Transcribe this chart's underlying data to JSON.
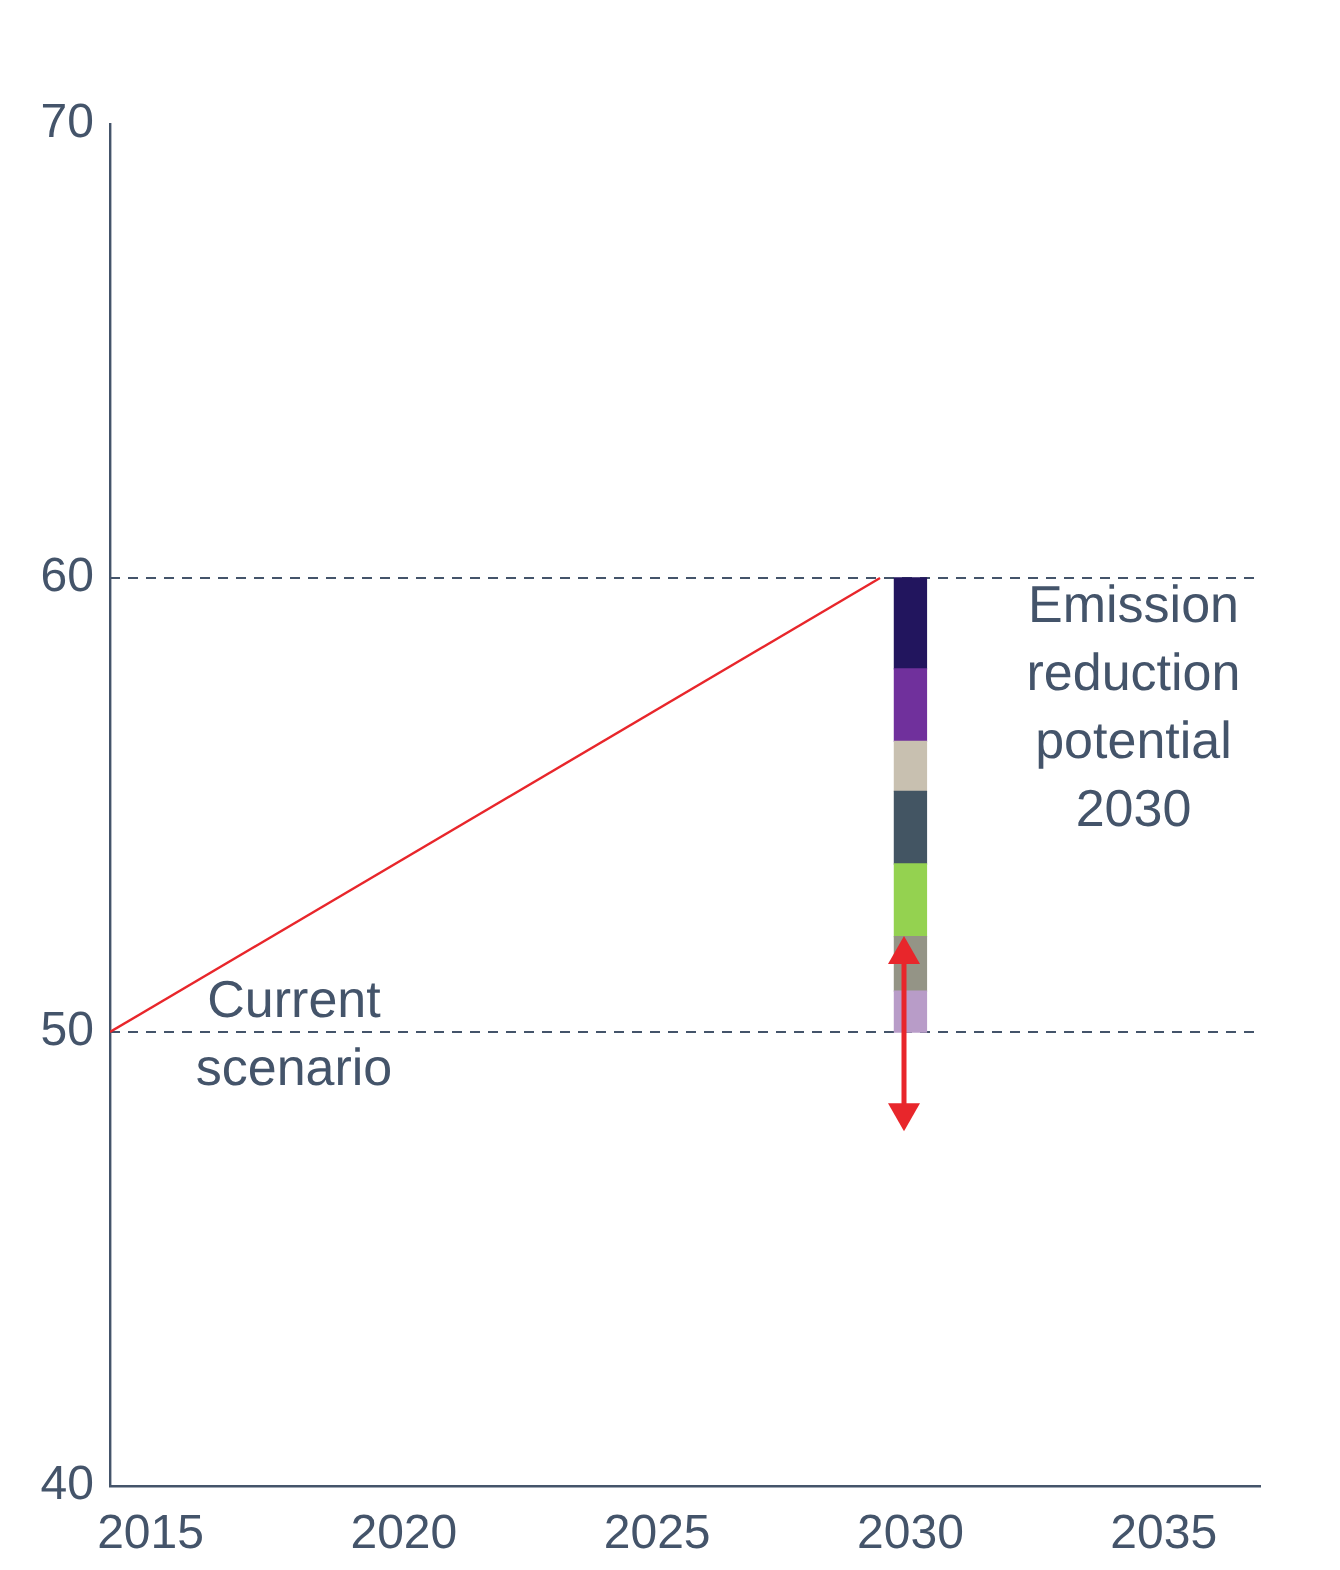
{
  "chart_data": {
    "type": "bar",
    "xlim": [
      2014.2,
      2036.9
    ],
    "xticks": [
      2015,
      2020,
      2025,
      2030,
      2035
    ],
    "ylim": [
      40,
      70
    ],
    "yticks": [
      40,
      50,
      60,
      70
    ],
    "series": [
      {
        "type": "line",
        "color": "#e8262b",
        "x": [
          2014.2,
          2029.4
        ],
        "values": [
          50,
          60
        ]
      },
      {
        "color": "#b89cc8",
        "x": [
          2030
        ],
        "values": [
          0.9
        ],
        "base": [
          50
        ]
      },
      {
        "color": "#949486",
        "x": [
          2030
        ],
        "values": [
          1.2
        ],
        "base": [
          50.9
        ]
      },
      {
        "color": "#94d250",
        "x": [
          2030
        ],
        "values": [
          1.6
        ],
        "base": [
          52.1
        ]
      },
      {
        "color": "#435563",
        "x": [
          2030
        ],
        "values": [
          1.6
        ],
        "base": [
          53.7
        ]
      },
      {
        "color": "#c8c0b0",
        "x": [
          2030
        ],
        "values": [
          1.1
        ],
        "base": [
          55.3
        ]
      },
      {
        "color": "#70309c",
        "x": [
          2030
        ],
        "values": [
          1.6
        ],
        "base": [
          56.4
        ]
      },
      {
        "color": "#22155e",
        "x": [
          2030
        ],
        "values": [
          2.0
        ],
        "base": [
          58.0
        ]
      }
    ],
    "ref_lines": [
      {
        "axis": "y",
        "value": 50,
        "color": "#44546a",
        "line_style": "dashed"
      },
      {
        "axis": "y",
        "value": 60,
        "color": "#44546a",
        "line_style": "dashed"
      }
    ],
    "annotations": [
      "Current\nscenario",
      "Emission\nreduction\npotential\n2030"
    ]
  }
}
